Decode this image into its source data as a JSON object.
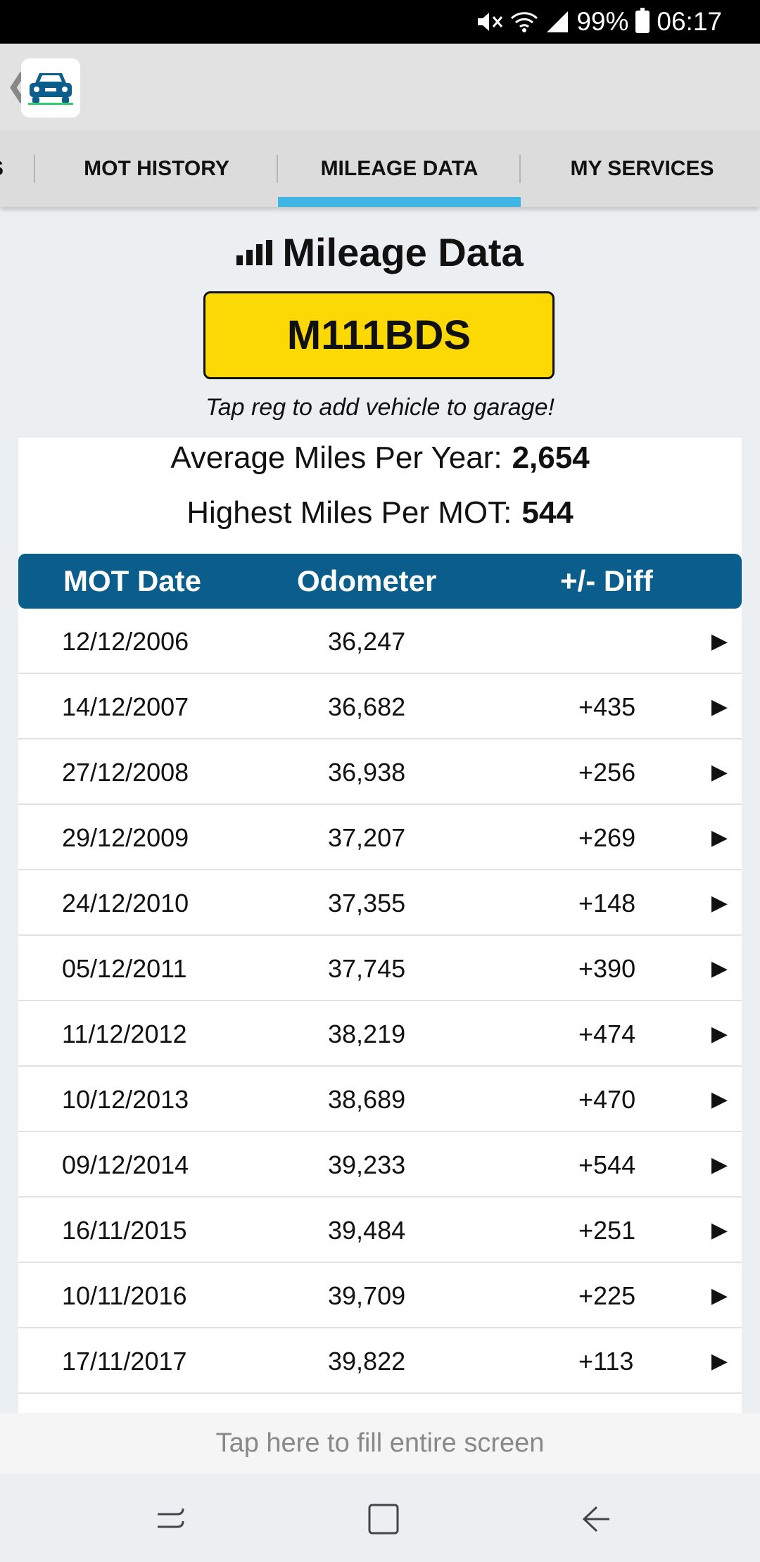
{
  "status_bar": {
    "battery": "99%",
    "time": "06:17"
  },
  "tabs": [
    {
      "label": "S"
    },
    {
      "label": "MOT HISTORY"
    },
    {
      "label": "MILEAGE DATA"
    },
    {
      "label": "MY SERVICES"
    }
  ],
  "active_tab": "MILEAGE DATA",
  "heading": "Mileage Data",
  "registration": "M111BDS",
  "hint": "Tap reg to add vehicle to garage!",
  "stats": {
    "avg_label": "Average Miles Per Year:",
    "avg_value": "2,654",
    "high_label": "Highest Miles Per MOT:",
    "high_value": "544"
  },
  "table": {
    "headers": [
      "MOT Date",
      "Odometer",
      "+/- Diff"
    ],
    "rows": [
      {
        "date": "12/12/2006",
        "odometer": "36,247",
        "diff": ""
      },
      {
        "date": "14/12/2007",
        "odometer": "36,682",
        "diff": "+435"
      },
      {
        "date": "27/12/2008",
        "odometer": "36,938",
        "diff": "+256"
      },
      {
        "date": "29/12/2009",
        "odometer": "37,207",
        "diff": "+269"
      },
      {
        "date": "24/12/2010",
        "odometer": "37,355",
        "diff": "+148"
      },
      {
        "date": "05/12/2011",
        "odometer": "37,745",
        "diff": "+390"
      },
      {
        "date": "11/12/2012",
        "odometer": "38,219",
        "diff": "+474"
      },
      {
        "date": "10/12/2013",
        "odometer": "38,689",
        "diff": "+470"
      },
      {
        "date": "09/12/2014",
        "odometer": "39,233",
        "diff": "+544"
      },
      {
        "date": "16/11/2015",
        "odometer": "39,484",
        "diff": "+251"
      },
      {
        "date": "10/11/2016",
        "odometer": "39,709",
        "diff": "+225"
      },
      {
        "date": "17/11/2017",
        "odometer": "39,822",
        "diff": "+113"
      }
    ]
  },
  "fill_screen_label": "Tap here to fill entire screen",
  "colors": {
    "accent": "#3fb6e4",
    "table_header": "#0b5e8c",
    "plate": "#fcd805"
  }
}
